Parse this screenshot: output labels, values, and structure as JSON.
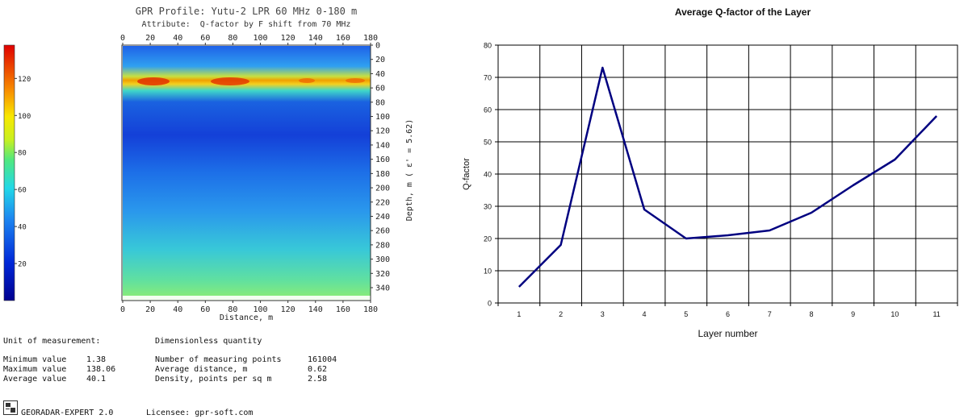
{
  "left_panel": {
    "title": "GPR Profile: Yutu-2 LPR 60 MHz 0-180 m",
    "attribute": "Attribute:  Q-factor by F shift from 70 MHz",
    "x_axis_label": "Distance, m",
    "depth_axis_label": "Depth, m ( ε' = 5.62)",
    "top_ticks": [
      "0",
      "20",
      "40",
      "60",
      "80",
      "100",
      "120",
      "140",
      "160",
      "180"
    ],
    "bottom_ticks": [
      "0",
      "20",
      "40",
      "60",
      "80",
      "100",
      "120",
      "140",
      "160",
      "180"
    ],
    "depth_ticks": [
      "0",
      "20",
      "40",
      "60",
      "80",
      "100",
      "120",
      "140",
      "160",
      "180",
      "200",
      "220",
      "240",
      "260",
      "280",
      "300",
      "320",
      "340"
    ],
    "colorbar_ticks": [
      "120",
      "100",
      "80",
      "60",
      "40",
      "20"
    ],
    "colorbar_range": [
      0,
      138
    ],
    "colors": {
      "high": "#e00000",
      "mid_high": "#f0f000",
      "mid": "#30e0e0",
      "low": "#1a4ee0",
      "min": "#000090"
    },
    "info": {
      "unit_label": "Unit of measurement:",
      "unit_value": "Dimensionless quantity",
      "min_label": "Minimum value",
      "min_value": "1.38",
      "max_label": "Maximum value",
      "max_value": "138.06",
      "avg_label": "Average value",
      "avg_value": "40.1",
      "points_label": "Number of measuring points",
      "points_value": "161004",
      "dist_label": "Average distance, m",
      "dist_value": "0.62",
      "density_label": "Density, points per sq m",
      "density_value": "2.58"
    },
    "footer": {
      "app_name": "GEORADAR-EXPERT 2.0",
      "licensee": "Licensee: gpr-soft.com"
    }
  },
  "chart_data": {
    "type": "line",
    "title": "Average Q-factor of the Layer",
    "xlabel": "Layer number",
    "ylabel": "Q-factor",
    "x": [
      1,
      2,
      3,
      4,
      5,
      6,
      7,
      8,
      9,
      10,
      11
    ],
    "series": [
      {
        "values": [
          5,
          18,
          73,
          29,
          20,
          21,
          22.5,
          28,
          36.5,
          44.5,
          58
        ],
        "color": "#000080"
      }
    ],
    "ylim": [
      0,
      80
    ],
    "yticks": [
      0,
      10,
      20,
      30,
      40,
      50,
      60,
      70,
      80
    ],
    "grid": true
  }
}
